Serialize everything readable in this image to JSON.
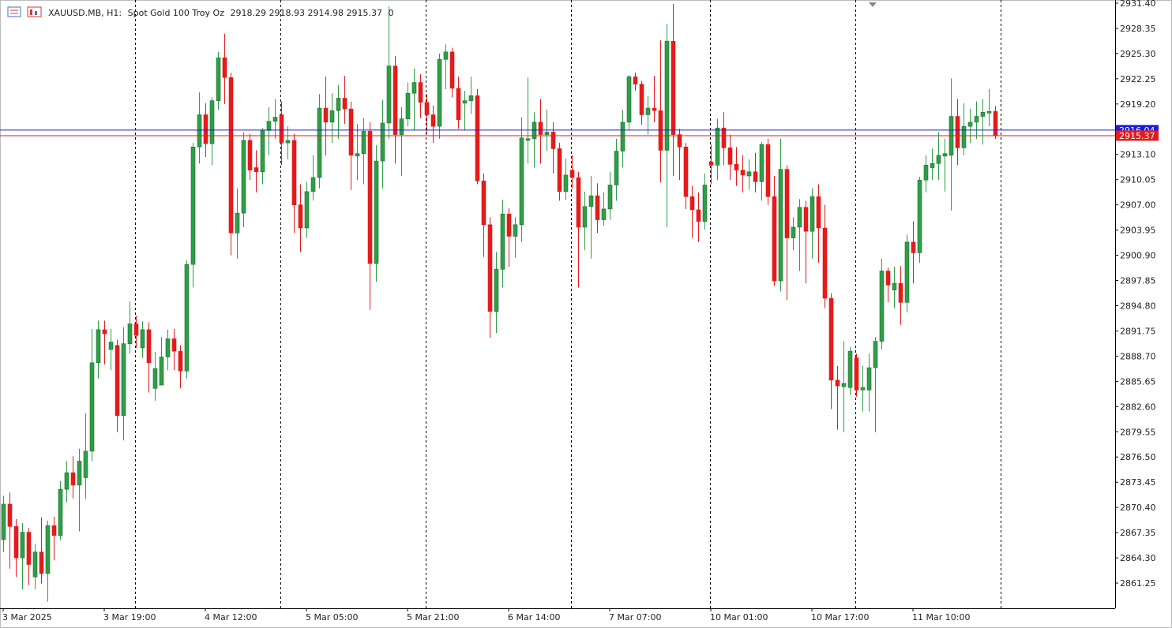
{
  "chart_data": {
    "type": "candlestick",
    "header": {
      "symbol": "XAUUSD.MB, H1:",
      "description": "Spot Gold 100 Troy Oz",
      "values": [
        2918.29,
        2918.93,
        2914.98,
        2915.37,
        0
      ]
    },
    "up_color": "#2e9e48",
    "down_color": "#e51b1b",
    "categories": [
      "3 Mar 2025",
      null,
      null,
      null,
      null,
      null,
      null,
      null,
      null,
      null,
      null,
      null,
      null,
      null,
      null,
      null,
      "3 Mar 19:00",
      null,
      null,
      null,
      null,
      null,
      null,
      null,
      null,
      null,
      null,
      null,
      null,
      null,
      null,
      null,
      "4 Mar 12:00",
      null,
      null,
      null,
      null,
      null,
      null,
      null,
      null,
      null,
      null,
      null,
      null,
      null,
      null,
      null,
      "5 Mar 05:00",
      null,
      null,
      null,
      null,
      null,
      null,
      null,
      null,
      null,
      null,
      null,
      null,
      null,
      null,
      null,
      "5 Mar 21:00",
      null,
      null,
      null,
      null,
      null,
      null,
      null,
      null,
      null,
      null,
      null,
      null,
      null,
      null,
      null,
      "6 Mar 14:00",
      null,
      null,
      null,
      null,
      null,
      null,
      null,
      null,
      null,
      null,
      null,
      null,
      null,
      null,
      null,
      "7 Mar 07:00",
      null,
      null,
      null,
      null,
      null,
      null,
      null,
      null,
      null,
      null,
      null,
      null,
      null,
      null,
      null,
      "10 Mar 01:00",
      null,
      null,
      null,
      null,
      null,
      null,
      null,
      null,
      null,
      null,
      null,
      null,
      null,
      null,
      null,
      "10 Mar 17:00",
      null,
      null,
      null,
      null,
      null,
      null,
      null,
      null,
      null,
      null,
      null,
      null,
      null,
      null,
      null,
      "11 Mar 10:00",
      null,
      null,
      null,
      null,
      null,
      null,
      null,
      null,
      null,
      null,
      null,
      null,
      null
    ],
    "open": [
      2866.5,
      2870.8,
      2868.1,
      2864.3,
      2867.4,
      2862.0,
      2865.0,
      2862.4,
      2868.2,
      2867.0,
      2872.6,
      2874.6,
      2873.1,
      2874.0,
      2877.2,
      2887.9,
      2891.9,
      2889.5,
      2890.0,
      2881.5,
      2890.2,
      2892.6,
      2889.7,
      2891.9,
      2884.8,
      2885.2,
      2888.6,
      2890.8,
      2889.3,
      2886.9,
      2899.8,
      2914.0,
      2917.9,
      2914.4,
      2919.6,
      2924.8,
      2922.4,
      2903.6,
      2906.0,
      2914.8,
      2911.5,
      2911.0,
      2916.0,
      2917.1,
      2917.9,
      2914.5,
      2914.8,
      2907.0,
      2904.2,
      2908.6,
      2910.3,
      2918.7,
      2917.0,
      2918.4,
      2919.9,
      2918.6,
      2912.9,
      2913.2,
      2915.9,
      2899.9,
      2912.3,
      2916.9,
      2923.8,
      2915.5,
      2917.4,
      2920.5,
      2921.8,
      2919.4,
      2917.9,
      2916.5,
      2924.6,
      2925.5,
      2921.1,
      2919.3,
      2919.6,
      2920.2,
      2909.9,
      2904.6,
      2894.1,
      2899.2,
      2905.9,
      2903.2,
      2904.6,
      2914.8,
      2915.0,
      2917.0,
      2915.5,
      2915.8,
      2913.8,
      2908.6,
      2911.2,
      2910.3,
      2904.3,
      2906.8,
      2908.1,
      2905.2,
      2906.5,
      2909.4,
      2913.5,
      2917.0,
      2922.5,
      2921.6,
      2917.9,
      2918.7,
      2918.4,
      2913.6,
      2926.8,
      2915.5,
      2914.0,
      2908.0,
      2906.4,
      2905.0,
      2912.2,
      2911.8,
      2916.3,
      2913.9,
      2911.9,
      2911.2,
      2910.5,
      2911.0,
      2909.8,
      2914.3,
      2908.0,
      2897.8,
      2911.3,
      2903.0,
      2904.3,
      2906.7,
      2903.8,
      2908.0,
      2904.2,
      2895.7,
      2885.8,
      2885.0,
      2884.9,
      2888.5,
      2884.6,
      2884.6,
      2887.3,
      2890.5,
      2899.0,
      2896.7,
      2897.5,
      2895.2,
      2902.5,
      2901.2,
      2910.0,
      2911.5,
      2912.0,
      2912.9,
      2913.0,
      2917.7,
      2913.9,
      2916.5,
      2917.0,
      2917.7,
      2918.1,
      2918.29
    ],
    "high": [
      2871.8,
      2872.2,
      2869.0,
      2868.5,
      2867.9,
      2866.0,
      2869.2,
      2868.8,
      2869.3,
      2873.6,
      2876.0,
      2876.6,
      2877.5,
      2881.8,
      2892.0,
      2893.0,
      2893.0,
      2892.0,
      2890.7,
      2892.2,
      2895.3,
      2893.6,
      2892.9,
      2892.8,
      2889.2,
      2891.0,
      2891.9,
      2892.0,
      2890.0,
      2900.3,
      2914.5,
      2920.6,
      2919.3,
      2920.0,
      2925.5,
      2927.7,
      2923.0,
      2909.0,
      2915.8,
      2915.6,
      2913.6,
      2916.3,
      2918.8,
      2919.8,
      2919.5,
      2916.5,
      2915.6,
      2909.5,
      2909.8,
      2913.0,
      2920.4,
      2922.5,
      2920.5,
      2921.5,
      2922.6,
      2919.5,
      2916.8,
      2917.5,
      2917.0,
      2914.2,
      2919.7,
      2931.0,
      2925.0,
      2918.8,
      2921.8,
      2923.5,
      2922.8,
      2920.4,
      2919.0,
      2925.3,
      2926.4,
      2926.0,
      2922.5,
      2920.8,
      2922.5,
      2921.0,
      2910.8,
      2905.5,
      2901.3,
      2907.6,
      2906.6,
      2905.5,
      2917.6,
      2922.4,
      2918.2,
      2919.8,
      2918.5,
      2917.0,
      2914.5,
      2912.6,
      2913.0,
      2911.0,
      2908.6,
      2910.5,
      2909.6,
      2908.5,
      2911.0,
      2915.0,
      2918.5,
      2922.7,
      2923.0,
      2922.0,
      2920.2,
      2922.6,
      2926.9,
      2928.9,
      2931.3,
      2916.2,
      2914.5,
      2909.3,
      2908.5,
      2910.8,
      2914.3,
      2917.4,
      2918.2,
      2915.5,
      2914.0,
      2913.0,
      2912.5,
      2913.3,
      2914.6,
      2915.0,
      2910.5,
      2915.0,
      2911.8,
      2905.5,
      2907.7,
      2907.5,
      2909.0,
      2909.5,
      2907.0,
      2896.3,
      2887.5,
      2890.5,
      2889.8,
      2889.0,
      2887.5,
      2889.0,
      2891.0,
      2900.5,
      2899.4,
      2899.5,
      2899.6,
      2903.4,
      2905.0,
      2910.4,
      2913.0,
      2913.8,
      2915.8,
      2915.0,
      2922.3,
      2919.8,
      2919.3,
      2918.6,
      2919.5,
      2919.8,
      2921.0,
      2918.93
    ],
    "low": [
      2865.0,
      2863.0,
      2862.0,
      2860.5,
      2861.0,
      2860.5,
      2861.2,
      2859.0,
      2864.0,
      2866.5,
      2871.0,
      2871.5,
      2867.5,
      2871.4,
      2876.0,
      2886.0,
      2887.7,
      2887.0,
      2879.5,
      2878.5,
      2889.0,
      2889.7,
      2888.5,
      2884.3,
      2883.3,
      2885.3,
      2887.0,
      2887.0,
      2884.8,
      2886.0,
      2897.0,
      2912.0,
      2912.8,
      2911.8,
      2918.5,
      2919.2,
      2900.9,
      2900.5,
      2904.3,
      2910.0,
      2908.5,
      2909.5,
      2913.0,
      2915.0,
      2911.8,
      2912.5,
      2903.6,
      2901.3,
      2903.0,
      2907.5,
      2909.0,
      2913.0,
      2914.5,
      2915.0,
      2916.8,
      2908.8,
      2910.0,
      2909.5,
      2894.3,
      2897.7,
      2909.0,
      2915.0,
      2912.0,
      2910.5,
      2916.5,
      2916.0,
      2917.5,
      2915.6,
      2914.5,
      2915.0,
      2921.0,
      2920.0,
      2916.2,
      2916.0,
      2918.0,
      2909.5,
      2900.7,
      2890.9,
      2891.5,
      2897.0,
      2899.5,
      2900.6,
      2902.5,
      2912.0,
      2911.5,
      2912.0,
      2913.5,
      2910.8,
      2907.5,
      2907.6,
      2909.0,
      2897.0,
      2901.5,
      2900.5,
      2903.6,
      2904.5,
      2905.2,
      2907.5,
      2911.5,
      2916.0,
      2920.8,
      2916.7,
      2915.5,
      2917.0,
      2909.7,
      2904.3,
      2910.5,
      2910.0,
      2906.5,
      2903.0,
      2902.5,
      2904.0,
      2909.5,
      2910.0,
      2911.8,
      2910.0,
      2909.3,
      2908.5,
      2908.8,
      2908.5,
      2907.5,
      2907.0,
      2897.2,
      2896.5,
      2895.5,
      2901.5,
      2899.0,
      2897.5,
      2900.5,
      2900.0,
      2894.5,
      2882.3,
      2879.8,
      2879.5,
      2884.0,
      2883.8,
      2882.0,
      2882.0,
      2879.5,
      2889.5,
      2895.2,
      2894.5,
      2892.5,
      2894.0,
      2897.5,
      2900.0,
      2908.5,
      2910.0,
      2910.0,
      2908.6,
      2906.3,
      2911.8,
      2913.0,
      2914.5,
      2915.0,
      2914.3,
      2916.5,
      2914.98
    ],
    "close": [
      2870.8,
      2868.1,
      2864.3,
      2867.4,
      2863.5,
      2865.0,
      2862.4,
      2868.2,
      2867.0,
      2872.6,
      2874.6,
      2873.1,
      2876.0,
      2877.2,
      2887.9,
      2891.9,
      2891.4,
      2890.4,
      2881.5,
      2890.2,
      2892.6,
      2891.2,
      2891.9,
      2887.9,
      2887.2,
      2888.6,
      2890.8,
      2889.3,
      2886.9,
      2899.8,
      2914.0,
      2917.9,
      2914.4,
      2919.6,
      2924.8,
      2922.4,
      2903.6,
      2906.0,
      2914.8,
      2911.2,
      2911.0,
      2916.0,
      2917.1,
      2917.6,
      2914.5,
      2914.8,
      2907.0,
      2904.2,
      2908.6,
      2910.3,
      2918.7,
      2917.0,
      2918.4,
      2919.9,
      2918.6,
      2913.0,
      2913.2,
      2915.9,
      2899.9,
      2912.3,
      2916.9,
      2923.8,
      2915.5,
      2917.4,
      2920.5,
      2921.8,
      2919.4,
      2917.9,
      2916.5,
      2924.6,
      2925.5,
      2921.1,
      2917.3,
      2919.6,
      2920.2,
      2909.9,
      2904.6,
      2894.1,
      2899.2,
      2905.9,
      2903.2,
      2904.6,
      2915.1,
      2915.0,
      2917.0,
      2915.5,
      2915.8,
      2913.8,
      2908.6,
      2910.6,
      2910.3,
      2904.3,
      2906.8,
      2908.1,
      2905.2,
      2906.5,
      2909.4,
      2913.5,
      2917.0,
      2922.5,
      2921.6,
      2917.9,
      2918.7,
      2918.4,
      2913.6,
      2926.8,
      2915.5,
      2914.0,
      2908.0,
      2906.4,
      2905.0,
      2909.4,
      2911.8,
      2916.3,
      2913.9,
      2911.9,
      2911.2,
      2910.6,
      2911.0,
      2909.8,
      2914.3,
      2908.0,
      2897.8,
      2911.3,
      2903.0,
      2904.3,
      2906.7,
      2903.8,
      2908.0,
      2904.2,
      2895.7,
      2885.8,
      2885.1,
      2885.4,
      2889.3,
      2884.6,
      2884.9,
      2887.3,
      2890.5,
      2899.0,
      2897.3,
      2897.5,
      2895.2,
      2902.5,
      2901.2,
      2910.0,
      2911.8,
      2912.0,
      2913.0,
      2913.2,
      2917.7,
      2913.9,
      2916.5,
      2917.0,
      2917.7,
      2918.2,
      2918.3,
      2915.37
    ],
    "ylim": [
      2858.2,
      2931.78
    ],
    "yticks": [
      {
        "value": 2931.4,
        "label": "2931.40"
      },
      2928.35,
      {
        "value": 2925.3,
        "label": "2925.30"
      },
      2922.25,
      {
        "value": 2919.2,
        "label": "2919.20"
      },
      2916.15,
      {
        "value": 2913.1,
        "label": "2913.10"
      },
      2910.05,
      {
        "value": 2907,
        "label": "2907.00"
      },
      2903.95,
      {
        "value": 2900.9,
        "label": "2900.90"
      },
      2897.85,
      {
        "value": 2894.8,
        "label": "2894.80"
      },
      2891.75,
      {
        "value": 2888.7,
        "label": "2888.70"
      },
      2885.65,
      {
        "value": 2882.6,
        "label": "2882.60"
      },
      2879.55,
      {
        "value": 2876.5,
        "label": "2876.50"
      },
      2873.45,
      {
        "value": 2870.4,
        "label": "2870.40"
      },
      2867.35,
      {
        "value": 2864.3,
        "label": "2864.30"
      },
      2861.25
    ],
    "price_lines": [
      {
        "value": 2916.04,
        "color": "#1c1cd6"
      },
      {
        "value": 2915.37,
        "color": "#e51b1b"
      }
    ]
  }
}
